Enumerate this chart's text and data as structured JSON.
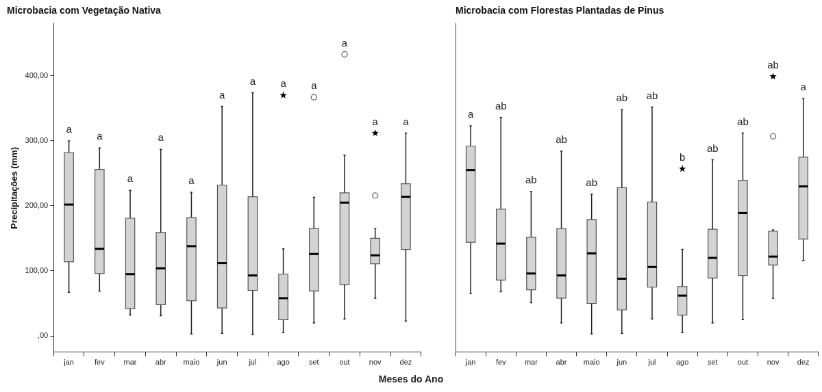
{
  "chart_data": [
    {
      "type": "box",
      "title": "Microbacia com Vegetação Nativa",
      "xlabel": "Meses do Ano",
      "ylabel": "Precipitações (mm)",
      "categories": [
        "jan",
        "fev",
        "mar",
        "abr",
        "maio",
        "jun",
        "jul",
        "ago",
        "set",
        "out",
        "nov",
        "dez"
      ],
      "ylim": [
        -25,
        480
      ],
      "yticks": [
        {
          "value": 0,
          "label": ",00"
        },
        {
          "value": 100,
          "label": "100,00"
        },
        {
          "value": 200,
          "label": "200,00"
        },
        {
          "value": 300,
          "label": "300,00"
        },
        {
          "value": 400,
          "label": "400,00"
        }
      ],
      "grid": false,
      "legend": false,
      "series": [
        {
          "color": "#d3d3d3",
          "boxes": [
            {
              "low": 67,
              "q1": 114,
              "median": 202,
              "q3": 282,
              "high": 300
            },
            {
              "low": 69,
              "q1": 96,
              "median": 134,
              "q3": 256,
              "high": 289
            },
            {
              "low": 32,
              "q1": 42,
              "median": 95,
              "q3": 181,
              "high": 224
            },
            {
              "low": 31,
              "q1": 48,
              "median": 104,
              "q3": 159,
              "high": 287
            },
            {
              "low": 3,
              "q1": 54,
              "median": 138,
              "q3": 182,
              "high": 221
            },
            {
              "low": 4,
              "q1": 43,
              "median": 112,
              "q3": 232,
              "high": 353
            },
            {
              "low": 2,
              "q1": 70,
              "median": 93,
              "q3": 214,
              "high": 374
            },
            {
              "low": 5,
              "q1": 25,
              "median": 58,
              "q3": 95,
              "high": 134
            },
            {
              "low": 20,
              "q1": 69,
              "median": 126,
              "q3": 165,
              "high": 213,
              "outliers": [
                367
              ]
            },
            {
              "low": 26,
              "q1": 79,
              "median": 205,
              "q3": 220,
              "high": 278,
              "outliers": [
                433
              ]
            },
            {
              "low": 58,
              "q1": 111,
              "median": 124,
              "q3": 150,
              "high": 165,
              "outliers": [
                216
              ]
            },
            {
              "low": 23,
              "q1": 133,
              "median": 214,
              "q3": 234,
              "high": 312
            }
          ]
        },
        {
          "type": "scatter",
          "marker": "star",
          "color": "#000000",
          "x": [
            "ago",
            "nov"
          ],
          "values": [
            370,
            312
          ]
        }
      ],
      "annotations": [
        "a",
        "a",
        "a",
        "a",
        "a",
        "a",
        "a",
        "a",
        "a",
        "a",
        "a",
        "a"
      ]
    },
    {
      "type": "box",
      "title": "Microbacia com Florestas Plantadas de Pinus",
      "categories": [
        "jan",
        "fev",
        "mar",
        "abr",
        "maio",
        "jun",
        "jul",
        "ago",
        "set",
        "out",
        "nov",
        "dez"
      ],
      "ylim": [
        -25,
        480
      ],
      "tick_labels": "x",
      "grid": false,
      "legend": false,
      "series": [
        {
          "color": "#d3d3d3",
          "boxes": [
            {
              "low": 65,
              "q1": 144,
              "median": 255,
              "q3": 292,
              "high": 323
            },
            {
              "low": 68,
              "q1": 86,
              "median": 142,
              "q3": 195,
              "high": 336
            },
            {
              "low": 51,
              "q1": 71,
              "median": 96,
              "q3": 152,
              "high": 222
            },
            {
              "low": 20,
              "q1": 58,
              "median": 93,
              "q3": 165,
              "high": 284
            },
            {
              "low": 3,
              "q1": 50,
              "median": 127,
              "q3": 179,
              "high": 218
            },
            {
              "low": 4,
              "q1": 40,
              "median": 88,
              "q3": 228,
              "high": 348
            },
            {
              "low": 26,
              "q1": 75,
              "median": 106,
              "q3": 206,
              "high": 352
            },
            {
              "low": 5,
              "q1": 32,
              "median": 62,
              "q3": 76,
              "high": 133
            },
            {
              "low": 20,
              "q1": 89,
              "median": 120,
              "q3": 164,
              "high": 271
            },
            {
              "low": 25,
              "q1": 93,
              "median": 189,
              "q3": 239,
              "high": 312
            },
            {
              "low": 58,
              "q1": 109,
              "median": 122,
              "q3": 161,
              "high": 163,
              "outliers": [
                307
              ]
            },
            {
              "low": 116,
              "q1": 149,
              "median": 230,
              "q3": 275,
              "high": 365
            }
          ]
        },
        {
          "type": "scatter",
          "marker": "star",
          "color": "#000000",
          "x": [
            "ago",
            "nov"
          ],
          "values": [
            257,
            399
          ]
        }
      ],
      "annotations": [
        "a",
        "ab",
        "ab",
        "ab",
        "ab",
        "ab",
        "ab",
        "b",
        "ab",
        "ab",
        "ab",
        "a"
      ]
    }
  ]
}
